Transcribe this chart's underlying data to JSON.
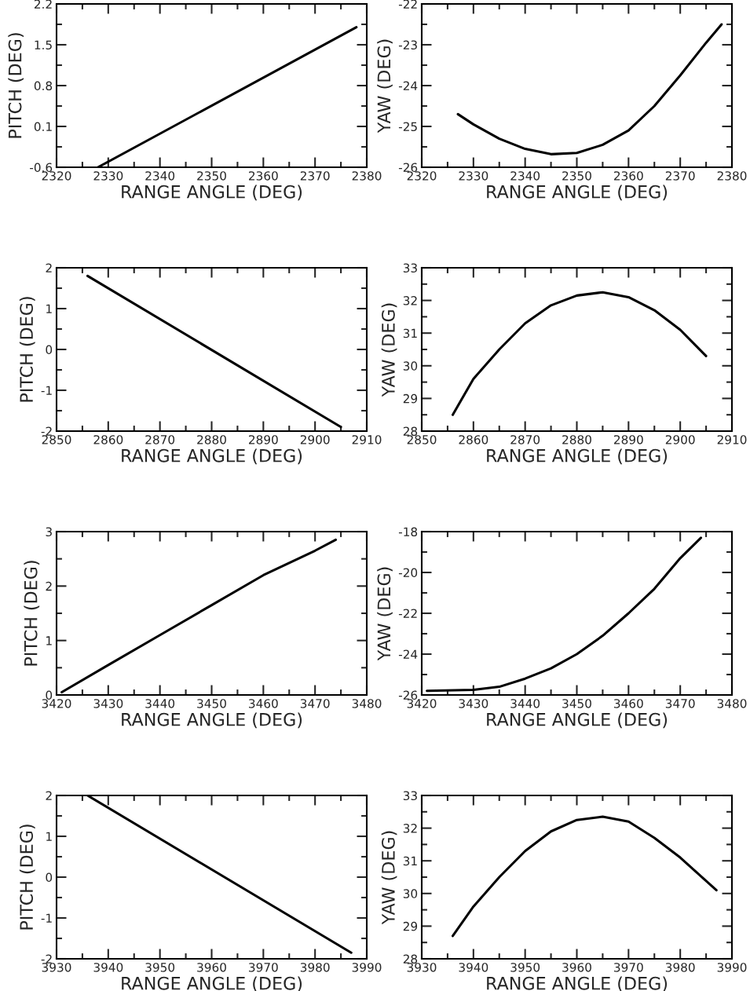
{
  "chart_data": [
    {
      "type": "line",
      "xlabel": "RANGE ANGLE (DEG)",
      "ylabel": "PITCH (DEG)",
      "color": "#000000",
      "grid": false,
      "xlim": [
        2320,
        2380
      ],
      "ylim": [
        -0.6,
        2.2
      ],
      "xticks": [
        2320,
        2330,
        2340,
        2350,
        2360,
        2370,
        2380
      ],
      "yticks": [
        -0.6,
        0.1,
        0.8,
        1.5,
        2.2
      ],
      "x": [
        2328,
        2378
      ],
      "values": [
        -0.6,
        1.8
      ]
    },
    {
      "type": "line",
      "xlabel": "RANGE ANGLE (DEG)",
      "ylabel": "YAW (DEG)",
      "color": "#000000",
      "grid": false,
      "xlim": [
        2320,
        2380
      ],
      "ylim": [
        -26,
        -22
      ],
      "xticks": [
        2320,
        2330,
        2340,
        2350,
        2360,
        2370,
        2380
      ],
      "yticks": [
        -26,
        -25,
        -24,
        -23,
        -22
      ],
      "x": [
        2327,
        2330,
        2335,
        2340,
        2345,
        2350,
        2355,
        2360,
        2365,
        2370,
        2375,
        2378
      ],
      "values": [
        -24.7,
        -24.95,
        -25.3,
        -25.55,
        -25.68,
        -25.65,
        -25.45,
        -25.1,
        -24.5,
        -23.75,
        -22.95,
        -22.5
      ]
    },
    {
      "type": "line",
      "xlabel": "RANGE ANGLE (DEG)",
      "ylabel": "PITCH (DEG)",
      "color": "#000000",
      "grid": false,
      "xlim": [
        2850,
        2910
      ],
      "ylim": [
        -2,
        2
      ],
      "xticks": [
        2850,
        2860,
        2870,
        2880,
        2890,
        2900,
        2910
      ],
      "yticks": [
        -2,
        -1,
        0,
        1,
        2
      ],
      "x": [
        2856,
        2905
      ],
      "values": [
        1.8,
        -1.9
      ]
    },
    {
      "type": "line",
      "xlabel": "RANGE ANGLE (DEG)",
      "ylabel": "YAW (DEG)",
      "color": "#000000",
      "grid": false,
      "xlim": [
        2850,
        2910
      ],
      "ylim": [
        28,
        33
      ],
      "xticks": [
        2850,
        2860,
        2870,
        2880,
        2890,
        2900,
        2910
      ],
      "yticks": [
        28,
        29,
        30,
        31,
        32,
        33
      ],
      "x": [
        2856,
        2860,
        2865,
        2870,
        2875,
        2880,
        2885,
        2890,
        2895,
        2900,
        2905
      ],
      "values": [
        28.5,
        29.6,
        30.5,
        31.3,
        31.85,
        32.15,
        32.25,
        32.1,
        31.7,
        31.1,
        30.3
      ]
    },
    {
      "type": "line",
      "xlabel": "RANGE ANGLE (DEG)",
      "ylabel": "PITCH (DEG)",
      "color": "#000000",
      "grid": false,
      "xlim": [
        3420,
        3480
      ],
      "ylim": [
        0,
        3
      ],
      "xticks": [
        3420,
        3430,
        3440,
        3450,
        3460,
        3470,
        3480
      ],
      "yticks": [
        0,
        1,
        2,
        3
      ],
      "x": [
        3421,
        3430,
        3440,
        3450,
        3460,
        3470,
        3474
      ],
      "values": [
        0.05,
        0.55,
        1.1,
        1.65,
        2.2,
        2.65,
        2.85
      ]
    },
    {
      "type": "line",
      "xlabel": "RANGE ANGLE (DEG)",
      "ylabel": "YAW (DEG)",
      "color": "#000000",
      "grid": false,
      "xlim": [
        3420,
        3480
      ],
      "ylim": [
        -26,
        -18
      ],
      "xticks": [
        3420,
        3430,
        3440,
        3450,
        3460,
        3470,
        3480
      ],
      "yticks": [
        -26,
        -24,
        -22,
        -20,
        -18
      ],
      "x": [
        3421,
        3430,
        3435,
        3440,
        3445,
        3450,
        3455,
        3460,
        3465,
        3470,
        3474
      ],
      "values": [
        -25.8,
        -25.75,
        -25.6,
        -25.2,
        -24.7,
        -24.0,
        -23.1,
        -22.0,
        -20.8,
        -19.3,
        -18.3
      ]
    },
    {
      "type": "line",
      "xlabel": "RANGE ANGLE (DEG)",
      "ylabel": "PITCH (DEG)",
      "color": "#000000",
      "grid": false,
      "xlim": [
        3930,
        3990
      ],
      "ylim": [
        -2,
        2
      ],
      "xticks": [
        3930,
        3940,
        3950,
        3960,
        3970,
        3980,
        3990
      ],
      "yticks": [
        -2,
        -1,
        0,
        1,
        2
      ],
      "x": [
        3936,
        3987
      ],
      "values": [
        2.0,
        -1.85
      ]
    },
    {
      "type": "line",
      "xlabel": "RANGE ANGLE (DEG)",
      "ylabel": "YAW (DEG)",
      "color": "#000000",
      "grid": false,
      "xlim": [
        3930,
        3990
      ],
      "ylim": [
        28,
        33
      ],
      "xticks": [
        3930,
        3940,
        3950,
        3960,
        3970,
        3980,
        3990
      ],
      "yticks": [
        28,
        29,
        30,
        31,
        32,
        33
      ],
      "x": [
        3936,
        3940,
        3945,
        3950,
        3955,
        3960,
        3965,
        3970,
        3975,
        3980,
        3987
      ],
      "values": [
        28.7,
        29.6,
        30.5,
        31.3,
        31.9,
        32.25,
        32.35,
        32.2,
        31.7,
        31.1,
        30.1
      ]
    }
  ]
}
